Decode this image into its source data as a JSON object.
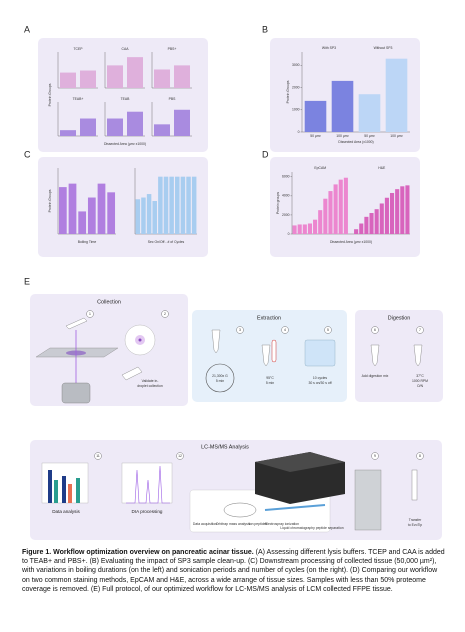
{
  "panel_labels": [
    "A",
    "B",
    "C",
    "D",
    "E"
  ],
  "chart_data": [
    {
      "type": "bar",
      "title": "TCEP",
      "values": [
        1500,
        1700
      ],
      "color": "#dfb0dc",
      "ylim": [
        0,
        3500
      ],
      "y_label": "Protein Groups"
    },
    {
      "type": "bar",
      "title": "CAA",
      "values": [
        2200,
        3000
      ],
      "color": "#dfb0dc",
      "ylim": [
        0,
        3500
      ]
    },
    {
      "type": "bar",
      "title": "PBS+",
      "values": [
        1800,
        2200
      ],
      "color": "#dfb0dc",
      "ylim": [
        0,
        3500
      ]
    },
    {
      "type": "bar",
      "title": "TEAB+",
      "values": [
        600,
        1800
      ],
      "color": "#a98be0",
      "ylim": [
        0,
        3500
      ]
    },
    {
      "type": "bar",
      "title": "TEAB",
      "values": [
        1800,
        2500
      ],
      "color": "#a98be0",
      "ylim": [
        0,
        3500
      ],
      "x_label": "Dissected Area (µm² x1000)"
    },
    {
      "type": "bar",
      "title": "PBS",
      "values": [
        1200,
        2700
      ],
      "color": "#a98be0",
      "ylim": [
        0,
        3500
      ]
    },
    {
      "type": "bar",
      "group_labels": [
        "With SP3",
        "Without SP3"
      ],
      "categories": [
        "50 µm²",
        "100 µm²",
        "50 µm²",
        "100 µm²"
      ],
      "values": [
        1400,
        2300,
        1700,
        3300
      ],
      "colors": [
        "#7b83e0",
        "#7b83e0",
        "#bcd6f6",
        "#bcd6f6"
      ],
      "ylim": [
        0,
        3600
      ],
      "yticks": [
        0,
        1000,
        2000,
        3000
      ],
      "y_label": "Protein Groups",
      "x_label": "Dissected Area (x1000)"
    },
    {
      "type": "bar",
      "values": [
        2700,
        2900,
        1300,
        2100,
        2900,
        2400
      ],
      "color": "#b07fe0",
      "ylim": [
        0,
        3800
      ],
      "y_label": "Protein Groups",
      "x_label": "Boiling Time"
    },
    {
      "type": "bar",
      "values": [
        2000,
        2100,
        2300,
        1900,
        3300,
        3300,
        3300,
        3300,
        3300,
        3300,
        3300
      ],
      "color": "#a8cdf0",
      "ylim": [
        0,
        3800
      ],
      "x_label": "Sec On/Off - # of Cycles"
    },
    {
      "type": "bar",
      "series": [
        {
          "name": "EpCAM",
          "color": "#ec86cf",
          "values": [
            900,
            1000,
            1000,
            1100,
            1500,
            2500,
            3700,
            4500,
            5200,
            5700,
            5900
          ]
        },
        {
          "name": "H&E",
          "color": "#d864bd",
          "values": [
            500,
            1100,
            1800,
            2200,
            2600,
            3200,
            3800,
            4300,
            4700,
            5000,
            5100
          ]
        }
      ],
      "ylim": [
        0,
        6500
      ],
      "yticks": [
        0,
        2000,
        4000,
        6000
      ],
      "y_label": "Protein groups",
      "x_label": "Dissected Area (µm² x1000)"
    }
  ],
  "diagram": {
    "collection": {
      "title": "Collection",
      "steps": [
        "1",
        "2"
      ],
      "note": [
        "Validate in-",
        "droplet collection"
      ]
    },
    "extraction": {
      "title": "Extraction",
      "steps": [
        "3",
        "4",
        "5"
      ],
      "notes": [
        [
          "21,300x G",
          "5 min"
        ],
        [
          "95°C",
          "5 min"
        ],
        [
          "10 cycles",
          "30 s on/30 s off"
        ]
      ]
    },
    "digestion": {
      "title": "Digestion",
      "steps": [
        "6",
        "7"
      ],
      "notes": [
        [
          "Add digestion mix"
        ],
        [
          "37°C",
          "1000 RPM",
          "O/N"
        ]
      ]
    },
    "lcms": {
      "title": "LC-MS/MS Analysis",
      "steps": [
        "11",
        "12",
        "9",
        "8"
      ],
      "labels": [
        "Data analysis",
        "DIA processing",
        "Transfer",
        "to EvoTip"
      ],
      "flow": [
        "Data acquisition",
        "Orbitrap mass analysis",
        "Ion peptides",
        "Electrospray ionization",
        "Liquid chromatography peptide separation"
      ]
    }
  },
  "caption": {
    "title": "Figure 1. Workflow optimization overview on pancreatic acinar tissue.",
    "text": "(A) Assessing different lysis buffers. TCEP and CAA is added to TEAB+ and PBS+. (B) Evaluating the impact of SP3 sample clean-up. (C) Downstream processing of collected tissue (50,000 µm²), with variations in boiling durations (on the left) and sonication periods and number of cycles (on the right). (D) Comparing our workflow on two common staining methods, EpCAM and H&E, across a wide arrange of tissue sizes. Samples with less than 50% proteome coverage is removed. (E) Full protocol, of our optimized workflow for LC-MS/MS analysis of LCM collected FFPE tissue."
  }
}
